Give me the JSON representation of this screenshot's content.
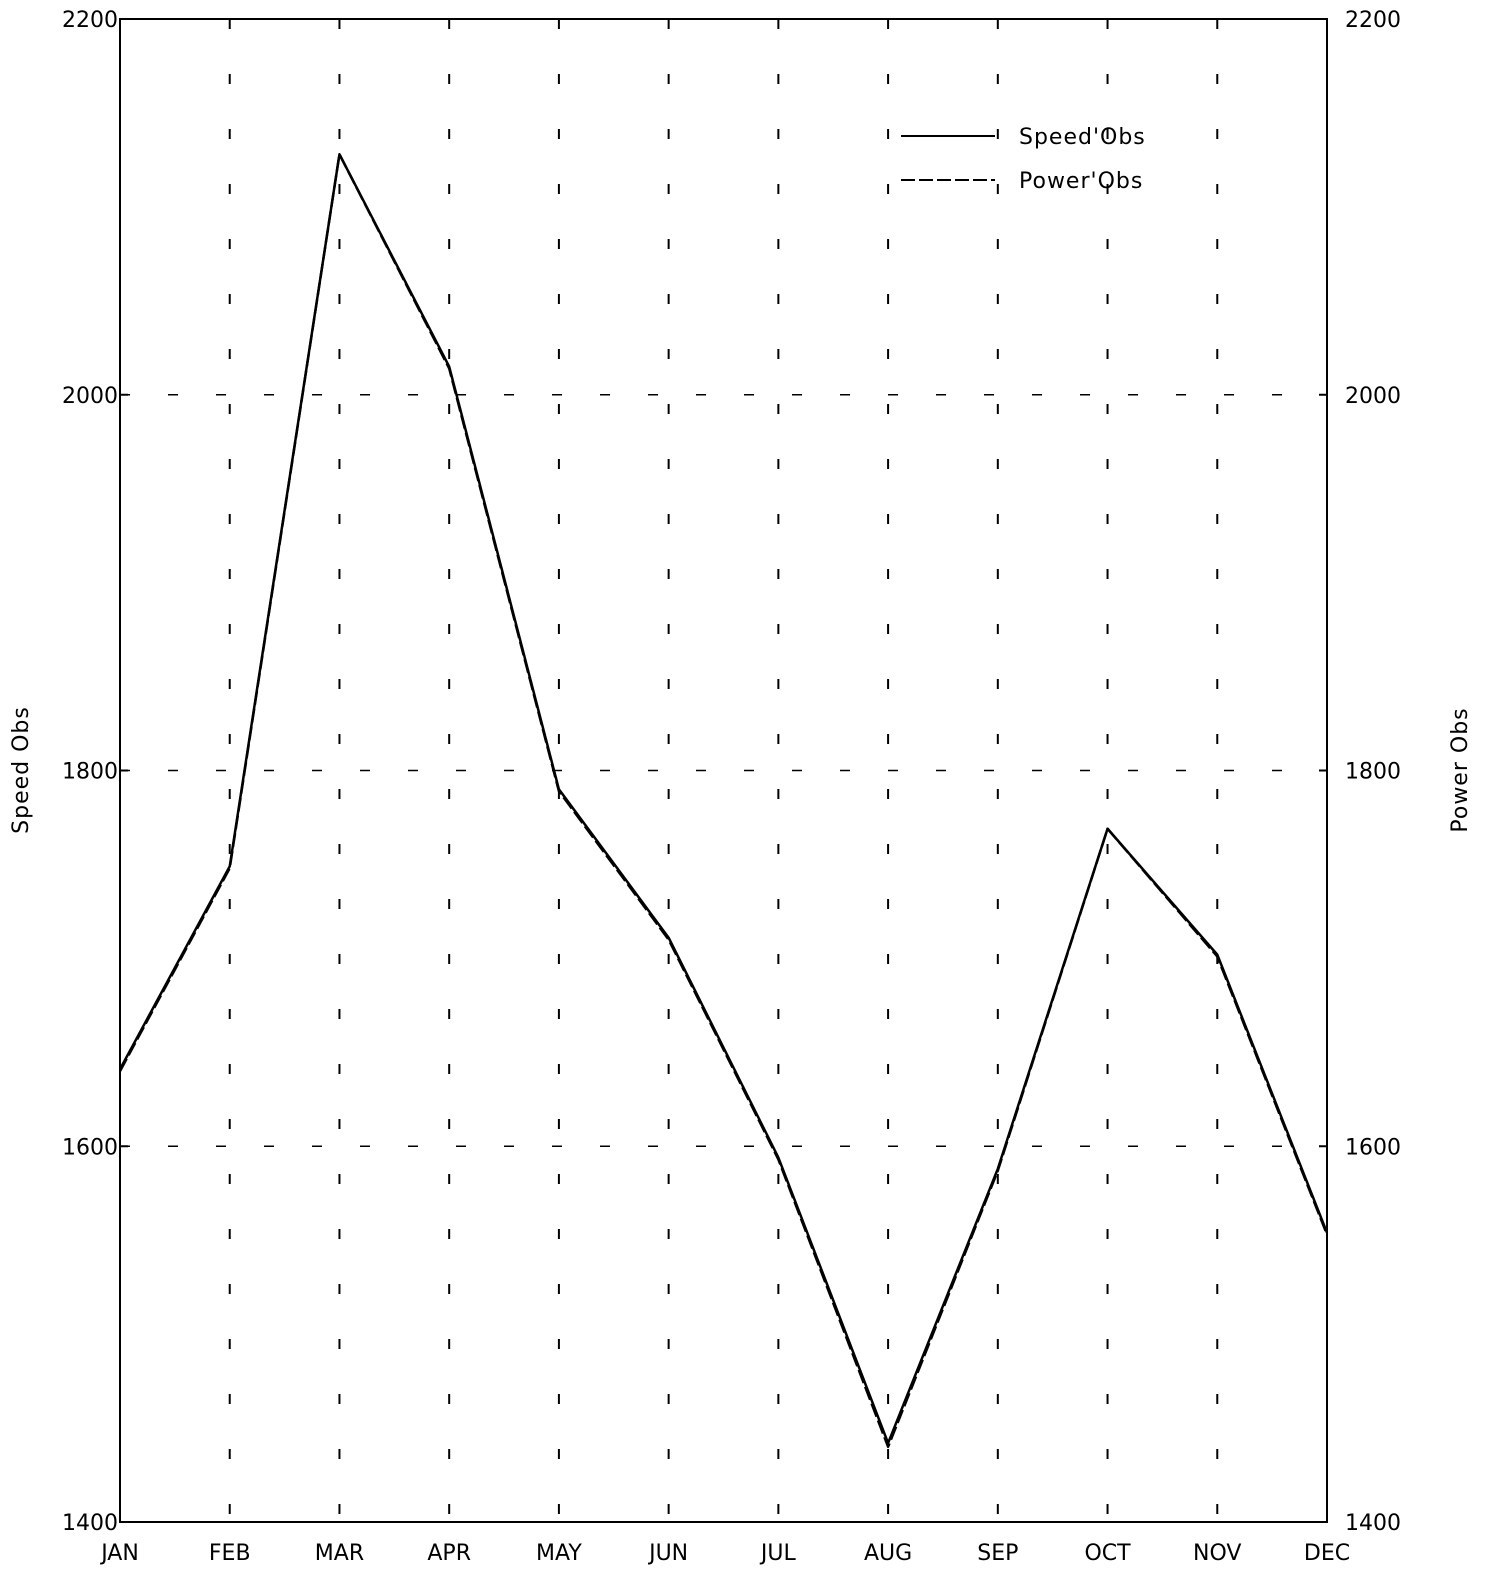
{
  "chart_data": {
    "type": "line",
    "title": "",
    "xlabel": "",
    "ylabel": "Speed Obs",
    "y2label": "Power Obs",
    "categories": [
      "JAN",
      "FEB",
      "MAR",
      "APR",
      "MAY",
      "JUN",
      "JUL",
      "AUG",
      "SEP",
      "OCT",
      "NOV",
      "DEC"
    ],
    "ylim": [
      1400,
      2200
    ],
    "y2lim": [
      1400,
      2200
    ],
    "yticks": [
      "1400",
      "1600",
      "1800",
      "2000",
      "2200"
    ],
    "y2ticks": [
      "1400",
      "1600",
      "1800",
      "2000",
      "2200"
    ],
    "grid": "dashed",
    "legend_position": "top-right",
    "line_color": "#000000",
    "series": [
      {
        "name": "Speed'Obs",
        "style": "solid",
        "values": [
          1641,
          1749,
          2128,
          2015,
          1790,
          1711,
          1594,
          1442,
          1588,
          1769,
          1702,
          1554
        ]
      },
      {
        "name": "Power'Obs",
        "style": "dashed",
        "values": [
          1640,
          1748,
          2128,
          2014,
          1789,
          1710,
          1593,
          1440,
          1587,
          1769,
          1701,
          1553
        ]
      }
    ]
  }
}
